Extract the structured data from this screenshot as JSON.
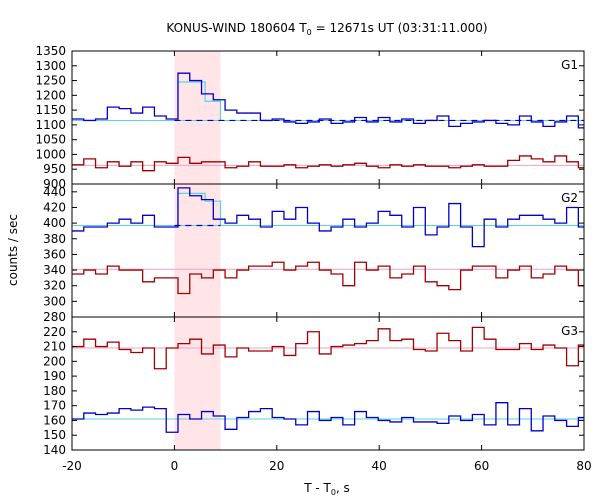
{
  "chart_data": {
    "type": "line",
    "title": "KONUS-WIND 180604 T",
    "title_sub": "0",
    "title_rest": " = 12671s UT (03:31:11.000)",
    "xlabel": "T - T",
    "xlabel_sub": "0",
    "xlabel_rest": ", s",
    "ylabel": "counts / sec",
    "xlim": [
      -20,
      80
    ],
    "xticks": [
      -20,
      0,
      20,
      40,
      60,
      80
    ],
    "highlight_interval": [
      0,
      9
    ],
    "colors": {
      "bright_blue": "#0000c8",
      "dark_red": "#a00000",
      "cyan_fit": "#5ad2e6",
      "pink_fit": "#f0a0c8",
      "highlight": "#ffe4e8",
      "dashed_bg": "#0000c8"
    },
    "panels": [
      {
        "name": "G1",
        "ylim": [
          900,
          1350
        ],
        "yticks": [
          900,
          950,
          1000,
          1050,
          1100,
          1150,
          1200,
          1250,
          1300,
          1350
        ],
        "x": [
          -20,
          -17.7,
          -15.4,
          -13.1,
          -10.8,
          -8.5,
          -6.2,
          -3.9,
          -1.6,
          0.7,
          3.0,
          5.3,
          7.6,
          9.9,
          12.2,
          14.5,
          16.8,
          19.1,
          21.4,
          23.7,
          26.0,
          28.3,
          30.6,
          32.9,
          35.2,
          37.5,
          39.8,
          42.1,
          44.4,
          46.7,
          49.0,
          51.3,
          53.6,
          55.9,
          58.2,
          60.5,
          62.8,
          65.1,
          67.4,
          69.7,
          72.0,
          74.3,
          76.6,
          78.9
        ],
        "series": [
          {
            "name": "upper",
            "color_key": "bright_blue",
            "values": [
              1120,
              1115,
              1120,
              1160,
              1155,
              1140,
              1160,
              1130,
              1120,
              1275,
              1250,
              1205,
              1185,
              1150,
              1140,
              1140,
              1115,
              1120,
              1110,
              1105,
              1110,
              1120,
              1105,
              1110,
              1125,
              1110,
              1125,
              1110,
              1120,
              1105,
              1115,
              1130,
              1095,
              1105,
              1110,
              1115,
              1105,
              1100,
              1130,
              1110,
              1095,
              1110,
              1130,
              1090
            ]
          },
          {
            "name": "lower",
            "color_key": "dark_red",
            "values": [
              965,
              985,
              955,
              975,
              960,
              975,
              945,
              975,
              970,
              990,
              970,
              975,
              975,
              955,
              960,
              975,
              960,
              960,
              965,
              955,
              960,
              965,
              960,
              965,
              970,
              960,
              955,
              965,
              960,
              965,
              960,
              960,
              955,
              960,
              965,
              960,
              960,
              980,
              995,
              985,
              975,
              995,
              975,
              955
            ]
          }
        ],
        "fits": [
          {
            "color_key": "cyan_fit",
            "level": 1115,
            "pulse": [
              [
                0.7,
                1245
              ],
              [
                6.0,
                1180
              ],
              [
                9.0,
                1145
              ]
            ]
          },
          {
            "color_key": "pink_fit",
            "level": 963
          }
        ],
        "dashed": {
          "color_key": "dashed_bg",
          "level": 1115,
          "range": [
            0,
            80
          ]
        }
      },
      {
        "name": "G2",
        "ylim": [
          280,
          450
        ],
        "yticks": [
          280,
          300,
          320,
          340,
          360,
          380,
          400,
          420,
          440
        ],
        "x": [
          -20,
          -17.7,
          -15.4,
          -13.1,
          -10.8,
          -8.5,
          -6.2,
          -3.9,
          -1.6,
          0.7,
          3.0,
          5.3,
          7.6,
          9.9,
          12.2,
          14.5,
          16.8,
          19.1,
          21.4,
          23.7,
          26.0,
          28.3,
          30.6,
          32.9,
          35.2,
          37.5,
          39.8,
          42.1,
          44.4,
          46.7,
          49.0,
          51.3,
          53.6,
          55.9,
          58.2,
          60.5,
          62.8,
          65.1,
          67.4,
          69.7,
          72.0,
          74.3,
          76.6,
          78.9
        ],
        "series": [
          {
            "name": "upper",
            "color_key": "bright_blue",
            "values": [
              390,
              395,
              395,
              400,
              405,
              400,
              410,
              395,
              395,
              445,
              435,
              430,
              405,
              400,
              410,
              405,
              395,
              415,
              405,
              420,
              400,
              390,
              395,
              405,
              395,
              400,
              415,
              410,
              395,
              420,
              385,
              395,
              425,
              395,
              370,
              405,
              395,
              405,
              410,
              410,
              405,
              400,
              420,
              395
            ]
          },
          {
            "name": "lower",
            "color_key": "dark_red",
            "values": [
              335,
              340,
              335,
              345,
              340,
              340,
              325,
              330,
              330,
              310,
              335,
              330,
              340,
              330,
              340,
              345,
              345,
              350,
              340,
              345,
              350,
              340,
              335,
              320,
              350,
              340,
              345,
              330,
              335,
              345,
              325,
              320,
              315,
              340,
              345,
              345,
              330,
              340,
              345,
              330,
              335,
              345,
              340,
              320
            ]
          }
        ],
        "fits": [
          {
            "color_key": "cyan_fit",
            "level": 397,
            "pulse": [
              [
                0.7,
                438
              ],
              [
                6.0,
                428
              ],
              [
                9.0,
                418
              ]
            ]
          },
          {
            "color_key": "pink_fit",
            "level": 341
          }
        ],
        "dashed": {
          "color_key": "dashed_bg",
          "level": 397,
          "range": [
            0,
            9
          ]
        }
      },
      {
        "name": "G3",
        "ylim": [
          140,
          230
        ],
        "yticks": [
          140,
          150,
          160,
          170,
          180,
          190,
          200,
          210,
          220
        ],
        "x": [
          -20,
          -17.7,
          -15.4,
          -13.1,
          -10.8,
          -8.5,
          -6.2,
          -3.9,
          -1.6,
          0.7,
          3.0,
          5.3,
          7.6,
          9.9,
          12.2,
          14.5,
          16.8,
          19.1,
          21.4,
          23.7,
          26.0,
          28.3,
          30.6,
          32.9,
          35.2,
          37.5,
          39.8,
          42.1,
          44.4,
          46.7,
          49.0,
          51.3,
          53.6,
          55.9,
          58.2,
          60.5,
          62.8,
          65.1,
          67.4,
          69.7,
          72.0,
          74.3,
          76.6,
          78.9
        ],
        "series": [
          {
            "name": "upper",
            "color_key": "dark_red",
            "values": [
              210,
              215,
              210,
              213,
              208,
              206,
              209,
              195,
              209,
              212,
              215,
              205,
              211,
              203,
              209,
              207,
              207,
              210,
              204,
              212,
              220,
              205,
              210,
              211,
              212,
              214,
              222,
              214,
              215,
              208,
              207,
              219,
              214,
              207,
              223,
              215,
              208,
              208,
              212,
              208,
              211,
              209,
              197,
              211
            ]
          },
          {
            "name": "lower",
            "color_key": "bright_blue",
            "values": [
              161,
              165,
              164,
              165,
              168,
              167,
              169,
              168,
              152,
              164,
              161,
              166,
              163,
              154,
              162,
              166,
              168,
              162,
              161,
              157,
              166,
              160,
              162,
              157,
              166,
              162,
              160,
              159,
              162,
              159,
              159,
              158,
              163,
              160,
              164,
              157,
              172,
              157,
              168,
              153,
              163,
              160,
              156,
              162
            ]
          }
        ],
        "fits": [
          {
            "color_key": "pink_fit",
            "level": 209
          },
          {
            "color_key": "cyan_fit",
            "level": 161
          }
        ]
      }
    ]
  }
}
